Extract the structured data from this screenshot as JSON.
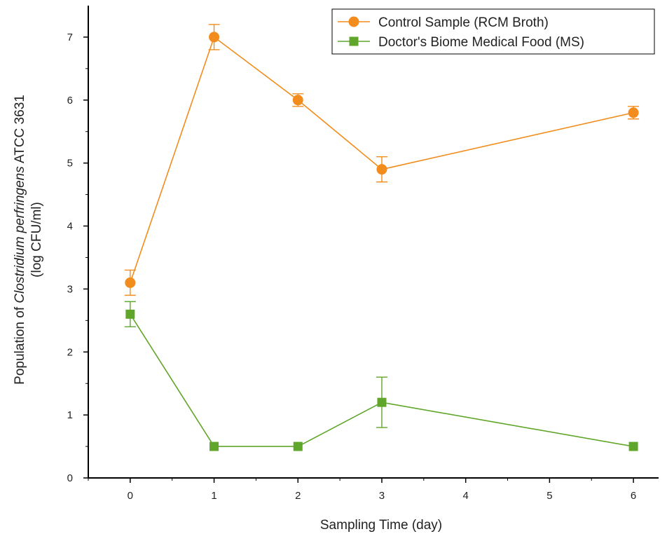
{
  "chart_data": {
    "type": "line",
    "title": "",
    "xlabel": "Sampling Time (day)",
    "ylabel_line1_prefix": "Population of ",
    "ylabel_line1_italic": "Clostridium perfringens",
    "ylabel_line1_suffix": " ATCC 3631",
    "ylabel_line2": "(log CFU/ml)",
    "xlim": [
      -0.5,
      6.3
    ],
    "ylim": [
      0,
      7.5
    ],
    "xticks": [
      0,
      1,
      2,
      3,
      4,
      5,
      6
    ],
    "yticks": [
      0,
      1,
      2,
      3,
      4,
      5,
      6,
      7
    ],
    "grid": false,
    "legend_position": "top-right",
    "series": [
      {
        "name": "Control Sample (RCM Broth)",
        "color": "#f28c1c",
        "marker": "circle",
        "x": [
          0,
          1,
          2,
          3,
          6
        ],
        "y": [
          3.1,
          7.0,
          6.0,
          4.9,
          5.8
        ],
        "error": [
          0.2,
          0.2,
          0.1,
          0.2,
          0.1
        ]
      },
      {
        "name": "Doctor's Biome Medical Food (MS)",
        "color": "#5fa62a",
        "marker": "square",
        "x": [
          0,
          1,
          2,
          3,
          6
        ],
        "y": [
          2.6,
          0.5,
          0.5,
          1.2,
          0.5
        ],
        "error": [
          0.2,
          0.0,
          0.0,
          0.4,
          0.0
        ]
      }
    ]
  }
}
